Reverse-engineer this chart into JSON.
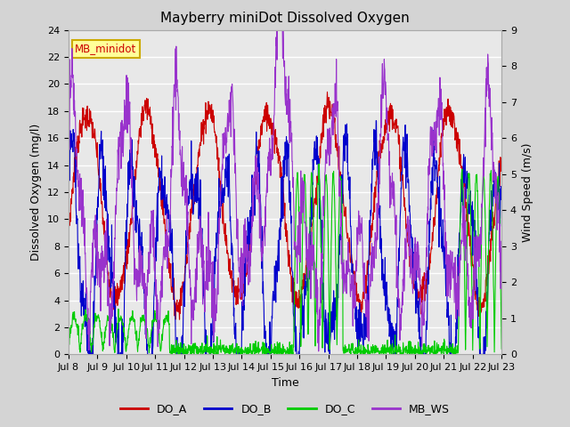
{
  "title": "Mayberry miniDot Dissolved Oxygen",
  "xlabel": "Time",
  "ylabel_left": "Dissolved Oxygen (mg/l)",
  "ylabel_right": "Wind Speed (m/s)",
  "ylim_left": [
    0,
    24
  ],
  "ylim_right": [
    0.0,
    9.0
  ],
  "yticks_left": [
    0,
    2,
    4,
    6,
    8,
    10,
    12,
    14,
    16,
    18,
    20,
    22,
    24
  ],
  "yticks_right": [
    0.0,
    1.0,
    2.0,
    3.0,
    4.0,
    5.0,
    6.0,
    7.0,
    8.0,
    9.0
  ],
  "xtick_labels": [
    "Jul 8",
    "Jul 9",
    "Jul 10",
    "Jul 11",
    "Jul 12",
    "Jul 13",
    "Jul 14",
    "Jul 15",
    "Jul 16",
    "Jul 17",
    "Jul 18",
    "Jul 19",
    "Jul 20",
    "Jul 21",
    "Jul 22",
    "Jul 23"
  ],
  "color_DO_A": "#cc0000",
  "color_DO_B": "#0000cc",
  "color_DO_C": "#00cc00",
  "color_MB_WS": "#9933cc",
  "legend_box_facecolor": "#ffff99",
  "legend_box_edgecolor": "#ccaa00",
  "legend_text": "MB_minidot",
  "legend_text_color": "#cc0000",
  "fig_facecolor": "#d4d4d4",
  "plot_bg_color": "#e8e8e8",
  "grid_color": "#ffffff",
  "linewidth": 0.8,
  "title_fontsize": 11,
  "label_fontsize": 9,
  "tick_fontsize": 8
}
